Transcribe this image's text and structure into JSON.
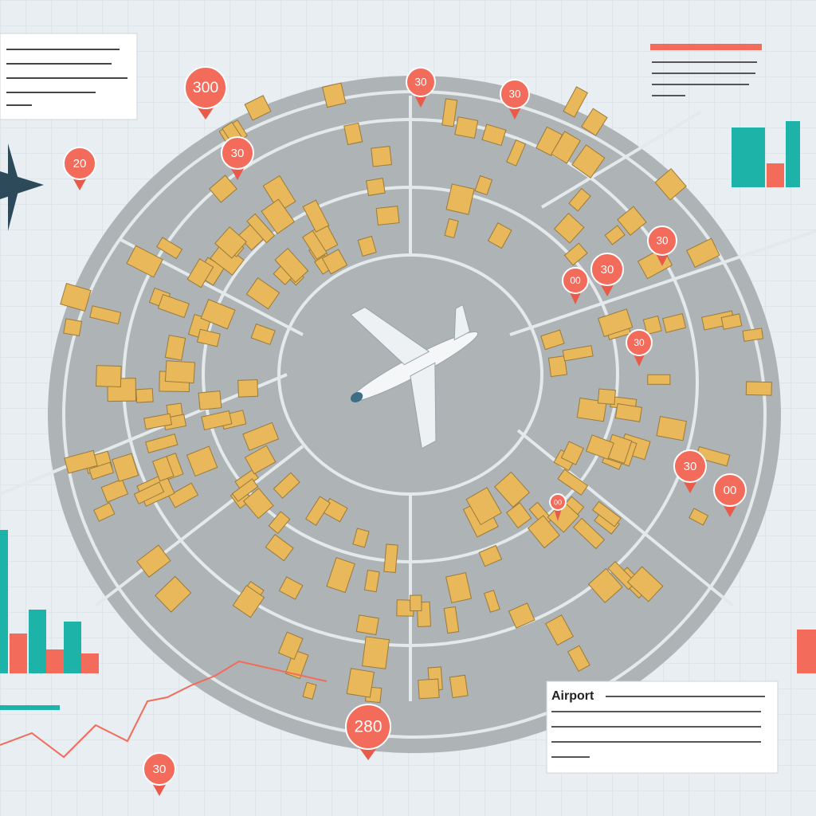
{
  "panel_bottom_right": {
    "title": "Airport"
  },
  "markers": [
    {
      "label": "300"
    },
    {
      "label": "30"
    },
    {
      "label": "30"
    },
    {
      "label": "30"
    },
    {
      "label": "20"
    },
    {
      "label": "30"
    },
    {
      "label": "30"
    },
    {
      "label": "00"
    },
    {
      "label": "30"
    },
    {
      "label": "30"
    },
    {
      "label": "00"
    },
    {
      "label": "00"
    },
    {
      "label": "280"
    },
    {
      "label": "30"
    }
  ]
}
